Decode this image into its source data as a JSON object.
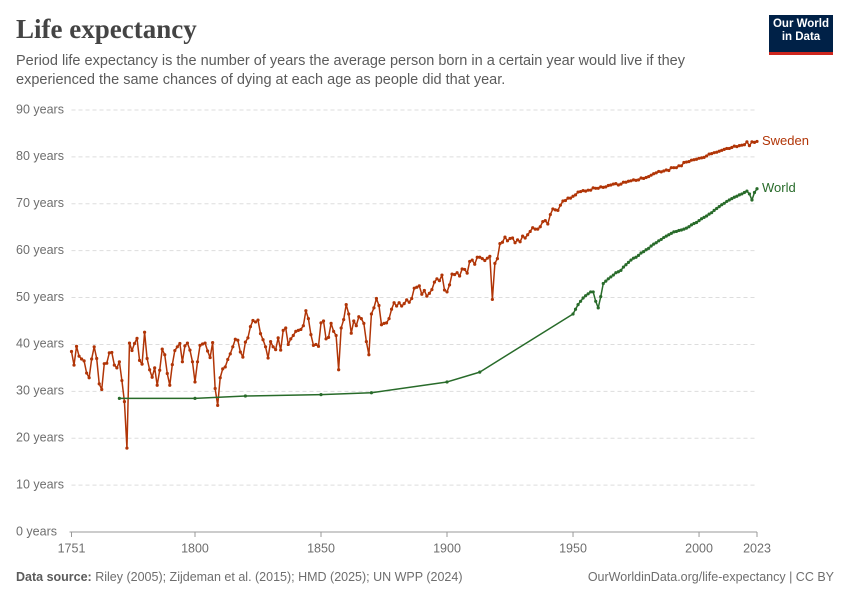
{
  "chart_data": {
    "type": "line",
    "title": "Life expectancy",
    "subtitle": "Period life expectancy is the number of years the average person born in a certain year would live if they experienced the same chances of dying at each age as people did that year.",
    "logo": [
      "Our World",
      "in Data"
    ],
    "source_label": "Data source:",
    "source": "Riley (2005); Zijdeman et al. (2015); HMD (2025); UN WPP (2024)",
    "footer_right": "OurWorldinData.org/life-expectancy | CC BY",
    "xlim": [
      1751,
      2023
    ],
    "xticks": [
      1751,
      1800,
      1850,
      1900,
      1950,
      2000,
      2023
    ],
    "ylim": [
      0,
      90
    ],
    "yticks": [
      {
        "value": 0,
        "label": "0 years"
      },
      {
        "value": 10,
        "label": "10 years"
      },
      {
        "value": 20,
        "label": "20 years"
      },
      {
        "value": 30,
        "label": "30 years"
      },
      {
        "value": 40,
        "label": "40 years"
      },
      {
        "value": 50,
        "label": "50 years"
      },
      {
        "value": 60,
        "label": "60 years"
      },
      {
        "value": 70,
        "label": "70 years"
      },
      {
        "value": 80,
        "label": "80 years"
      },
      {
        "value": 90,
        "label": "90 years"
      }
    ],
    "grid": true,
    "series": [
      {
        "name": "Sweden",
        "color": "#b13507",
        "x": [
          1751,
          1752,
          1753,
          1754,
          1755,
          1756,
          1757,
          1758,
          1759,
          1760,
          1761,
          1762,
          1763,
          1764,
          1765,
          1766,
          1767,
          1768,
          1769,
          1770,
          1771,
          1772,
          1773,
          1774,
          1775,
          1776,
          1777,
          1778,
          1779,
          1780,
          1781,
          1782,
          1783,
          1784,
          1785,
          1786,
          1787,
          1788,
          1789,
          1790,
          1791,
          1792,
          1793,
          1794,
          1795,
          1796,
          1797,
          1798,
          1799,
          1800,
          1801,
          1802,
          1803,
          1804,
          1805,
          1806,
          1807,
          1808,
          1809,
          1810,
          1811,
          1812,
          1813,
          1814,
          1815,
          1816,
          1817,
          1818,
          1819,
          1820,
          1821,
          1822,
          1823,
          1824,
          1825,
          1826,
          1827,
          1828,
          1829,
          1830,
          1831,
          1832,
          1833,
          1834,
          1835,
          1836,
          1837,
          1838,
          1839,
          1840,
          1841,
          1842,
          1843,
          1844,
          1845,
          1846,
          1847,
          1848,
          1849,
          1850,
          1851,
          1852,
          1853,
          1854,
          1855,
          1856,
          1857,
          1858,
          1859,
          1860,
          1861,
          1862,
          1863,
          1864,
          1865,
          1866,
          1867,
          1868,
          1869,
          1870,
          1871,
          1872,
          1873,
          1874,
          1875,
          1876,
          1877,
          1878,
          1879,
          1880,
          1881,
          1882,
          1883,
          1884,
          1885,
          1886,
          1887,
          1888,
          1889,
          1890,
          1891,
          1892,
          1893,
          1894,
          1895,
          1896,
          1897,
          1898,
          1899,
          1900,
          1901,
          1902,
          1903,
          1904,
          1905,
          1906,
          1907,
          1908,
          1909,
          1910,
          1911,
          1912,
          1913,
          1914,
          1915,
          1916,
          1917,
          1918,
          1919,
          1920,
          1921,
          1922,
          1923,
          1924,
          1925,
          1926,
          1927,
          1928,
          1929,
          1930,
          1931,
          1932,
          1933,
          1934,
          1935,
          1936,
          1937,
          1938,
          1939,
          1940,
          1941,
          1942,
          1943,
          1944,
          1945,
          1946,
          1947,
          1948,
          1949,
          1950,
          1951,
          1952,
          1953,
          1954,
          1955,
          1956,
          1957,
          1958,
          1959,
          1960,
          1961,
          1962,
          1963,
          1964,
          1965,
          1966,
          1967,
          1968,
          1969,
          1970,
          1971,
          1972,
          1973,
          1974,
          1975,
          1976,
          1977,
          1978,
          1979,
          1980,
          1981,
          1982,
          1983,
          1984,
          1985,
          1986,
          1987,
          1988,
          1989,
          1990,
          1991,
          1992,
          1993,
          1994,
          1995,
          1996,
          1997,
          1998,
          1999,
          2000,
          2001,
          2002,
          2003,
          2004,
          2005,
          2006,
          2007,
          2008,
          2009,
          2010,
          2011,
          2012,
          2013,
          2014,
          2015,
          2016,
          2017,
          2018,
          2019,
          2020,
          2021,
          2022,
          2023
        ],
        "values": [
          38.5,
          35.6,
          39.6,
          37.5,
          36.9,
          36.5,
          33.9,
          32.9,
          36.9,
          39.5,
          37.0,
          31.6,
          30.4,
          35.9,
          36.0,
          38.2,
          38.3,
          35.6,
          35.0,
          36.3,
          32.3,
          27.8,
          17.9,
          40.3,
          38.7,
          40.2,
          41.3,
          36.6,
          35.8,
          42.6,
          37.0,
          34.6,
          33.0,
          35.0,
          31.3,
          34.5,
          39.0,
          37.8,
          33.8,
          31.3,
          35.7,
          38.7,
          39.5,
          40.2,
          36.3,
          39.7,
          40.3,
          38.8,
          36.3,
          32.0,
          36.3,
          39.8,
          40.1,
          40.3,
          38.6,
          37.2,
          40.4,
          30.6,
          27.0,
          32.9,
          34.8,
          35.2,
          36.8,
          38.0,
          39.5,
          41.1,
          40.9,
          38.4,
          37.3,
          40.5,
          41.4,
          43.8,
          45.1,
          44.8,
          45.2,
          42.3,
          41.0,
          39.5,
          37.1,
          40.6,
          39.5,
          38.9,
          41.4,
          38.8,
          43.0,
          43.5,
          40.0,
          41.2,
          41.9,
          42.8,
          43.0,
          43.2,
          44.0,
          47.2,
          45.5,
          42.1,
          39.8,
          40.0,
          39.6,
          44.6,
          45.0,
          41.2,
          41.5,
          44.5,
          42.8,
          41.9,
          34.6,
          43.5,
          45.3,
          48.5,
          46.5,
          42.4,
          45.0,
          44.0,
          45.9,
          45.5,
          44.5,
          40.6,
          37.8,
          46.5,
          47.8,
          49.8,
          48.3,
          44.2,
          44.5,
          44.6,
          45.5,
          47.5,
          48.9,
          48.2,
          48.9,
          48.2,
          48.7,
          49.5,
          49.0,
          49.8,
          52.0,
          52.2,
          52.5,
          50.7,
          51.5,
          50.3,
          50.9,
          51.7,
          53.3,
          54.0,
          53.6,
          54.8,
          51.6,
          51.2,
          52.7,
          55.0,
          54.9,
          55.3,
          54.6,
          56.1,
          56.0,
          55.2,
          57.7,
          58.0,
          57.1,
          58.6,
          58.6,
          58.3,
          57.9,
          58.4,
          58.8,
          49.6,
          57.3,
          58.3,
          61.5,
          61.8,
          62.9,
          62.1,
          62.6,
          62.7,
          61.7,
          62.3,
          61.9,
          63.1,
          62.7,
          63.4,
          64.1,
          64.9,
          64.6,
          64.6,
          65.1,
          66.2,
          66.4,
          65.7,
          67.7,
          68.9,
          68.7,
          68.6,
          69.7,
          70.6,
          70.7,
          71.2,
          71.2,
          71.6,
          71.9,
          72.5,
          72.6,
          72.8,
          72.7,
          72.9,
          72.9,
          73.4,
          73.3,
          73.3,
          73.6,
          73.5,
          73.6,
          73.9,
          74.0,
          74.2,
          74.3,
          74.0,
          74.2,
          74.6,
          74.6,
          74.8,
          74.9,
          75.1,
          75.0,
          75.1,
          75.5,
          75.4,
          75.6,
          75.8,
          76.1,
          76.4,
          76.6,
          76.9,
          76.8,
          77.0,
          77.2,
          77.1,
          77.7,
          77.7,
          77.7,
          78.1,
          78.1,
          78.8,
          78.9,
          79.0,
          79.3,
          79.4,
          79.5,
          79.7,
          79.8,
          79.9,
          80.2,
          80.6,
          80.7,
          80.9,
          81.0,
          81.2,
          81.4,
          81.6,
          81.8,
          81.8,
          82.0,
          82.3,
          82.2,
          82.4,
          82.5,
          82.6,
          83.2,
          82.4,
          83.2,
          83.1,
          83.3
        ]
      },
      {
        "name": "World",
        "color": "#286b2a",
        "x": [
          1770,
          1800,
          1820,
          1850,
          1870,
          1900,
          1913,
          1950,
          1951,
          1952,
          1953,
          1954,
          1955,
          1956,
          1957,
          1958,
          1959,
          1960,
          1961,
          1962,
          1963,
          1964,
          1965,
          1966,
          1967,
          1968,
          1969,
          1970,
          1971,
          1972,
          1973,
          1974,
          1975,
          1976,
          1977,
          1978,
          1979,
          1980,
          1981,
          1982,
          1983,
          1984,
          1985,
          1986,
          1987,
          1988,
          1989,
          1990,
          1991,
          1992,
          1993,
          1994,
          1995,
          1996,
          1997,
          1998,
          1999,
          2000,
          2001,
          2002,
          2003,
          2004,
          2005,
          2006,
          2007,
          2008,
          2009,
          2010,
          2011,
          2012,
          2013,
          2014,
          2015,
          2016,
          2017,
          2018,
          2019,
          2020,
          2021,
          2022,
          2023
        ],
        "values": [
          28.5,
          28.5,
          29.0,
          29.3,
          29.7,
          32.0,
          34.1,
          46.5,
          47.5,
          48.5,
          49.2,
          49.9,
          50.4,
          50.8,
          51.2,
          51.2,
          49.2,
          47.8,
          50.2,
          53.0,
          53.5,
          54.0,
          54.4,
          54.8,
          55.3,
          55.5,
          55.8,
          56.5,
          57.0,
          57.5,
          58.0,
          58.4,
          58.6,
          59.0,
          59.5,
          59.8,
          60.2,
          60.5,
          61.0,
          61.4,
          61.7,
          62.1,
          62.4,
          62.8,
          63.1,
          63.4,
          63.7,
          64.0,
          64.1,
          64.3,
          64.4,
          64.6,
          64.8,
          65.1,
          65.5,
          65.8,
          66.0,
          66.4,
          66.8,
          67.1,
          67.4,
          67.8,
          68.1,
          68.6,
          69.0,
          69.4,
          69.8,
          70.1,
          70.5,
          70.8,
          71.1,
          71.4,
          71.6,
          71.9,
          72.1,
          72.4,
          72.7,
          72.1,
          70.8,
          72.4,
          73.2
        ]
      }
    ]
  }
}
